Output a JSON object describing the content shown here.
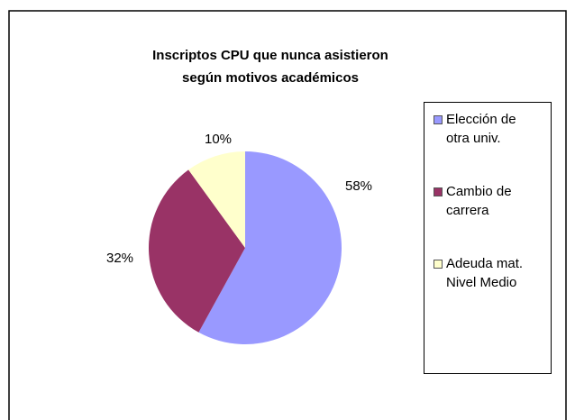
{
  "chart_data": {
    "type": "pie",
    "title": [
      "Inscriptos CPU que nunca asistieron",
      "según motivos académicos"
    ],
    "categories": [
      "Elección de otra univ.",
      "Cambio de carrera",
      "Adeuda mat. Nivel Medio"
    ],
    "values": [
      58,
      32,
      10
    ],
    "value_labels": [
      "58%",
      "32%",
      "10%"
    ],
    "colors": [
      "#9999ff",
      "#993366",
      "#ffffcc"
    ],
    "legend": "right"
  }
}
